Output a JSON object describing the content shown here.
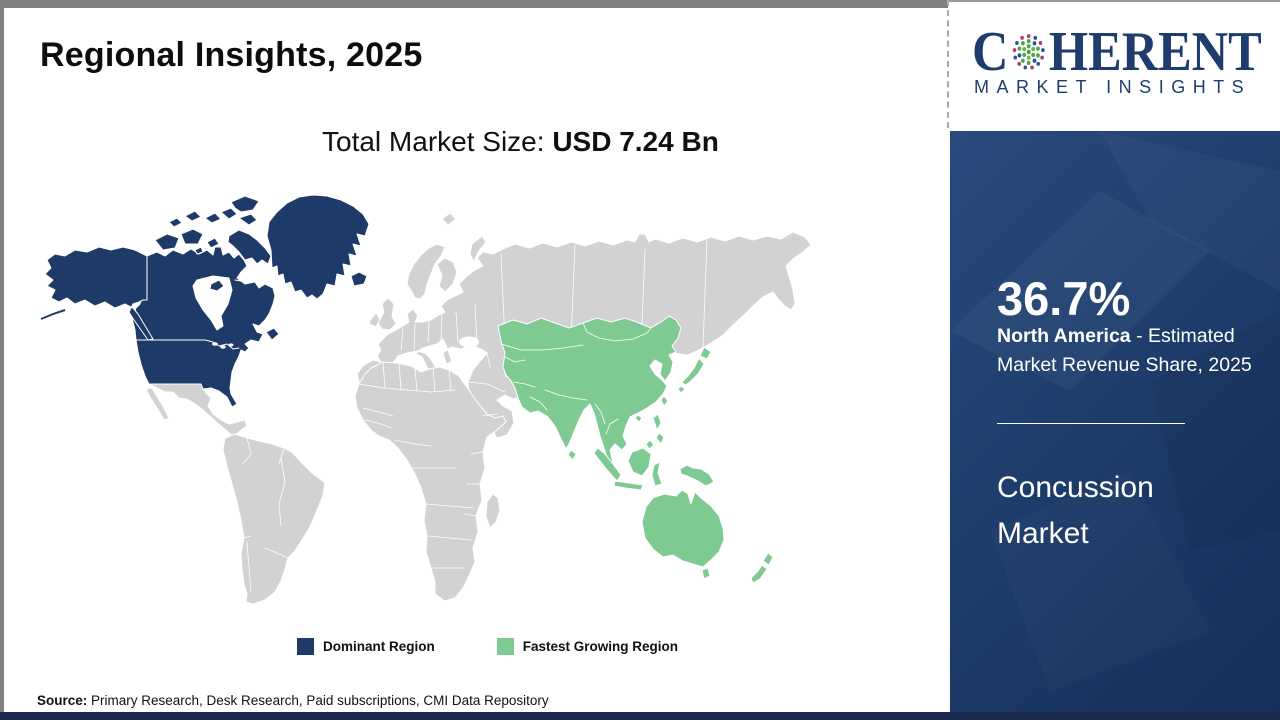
{
  "header": {
    "title": "Regional Insights, 2025"
  },
  "subtitle": {
    "label": "Total Market Size: ",
    "value": "USD 7.24 Bn"
  },
  "map_legend": {
    "dominant": "Dominant Region",
    "fastest": "Fastest Growing Region"
  },
  "source": {
    "label": "Source:",
    "text": " Primary Research, Desk Research, Paid subscriptions, CMI Data Repository"
  },
  "logo": {
    "word_start": "C",
    "word_rest": "HERENT",
    "subtitle": "MARKET INSIGHTS"
  },
  "panel": {
    "share": "36.7%",
    "region": "North America",
    "region_desc": " - Estimated Market Revenue Share, 2025",
    "market": "Concussion Market"
  },
  "colors": {
    "dominant": "#1d3a68",
    "fastest": "#7fca93",
    "land": "#d2d2d2",
    "panel_bg": "#1e3c6e",
    "logo_navy": "#1e3d6e"
  },
  "chart_data": {
    "type": "choropleth_map",
    "title": "Regional Insights, 2025",
    "total_market_size": "USD 7.24 Bn",
    "market": "Concussion Market",
    "highlight": {
      "region": "North America",
      "metric": "Estimated Market Revenue Share, 2025",
      "value_pct": 36.7
    },
    "regions": [
      {
        "name": "North America",
        "status": "Dominant Region",
        "color": "#1d3a68"
      },
      {
        "name": "Asia Pacific",
        "status": "Fastest Growing Region",
        "color": "#7fca93"
      },
      {
        "name": "Rest of World",
        "status": "",
        "color": "#d2d2d2"
      }
    ],
    "legend": [
      "Dominant Region",
      "Fastest Growing Region"
    ],
    "source": "Primary Research, Desk Research, Paid subscriptions, CMI Data Repository"
  }
}
